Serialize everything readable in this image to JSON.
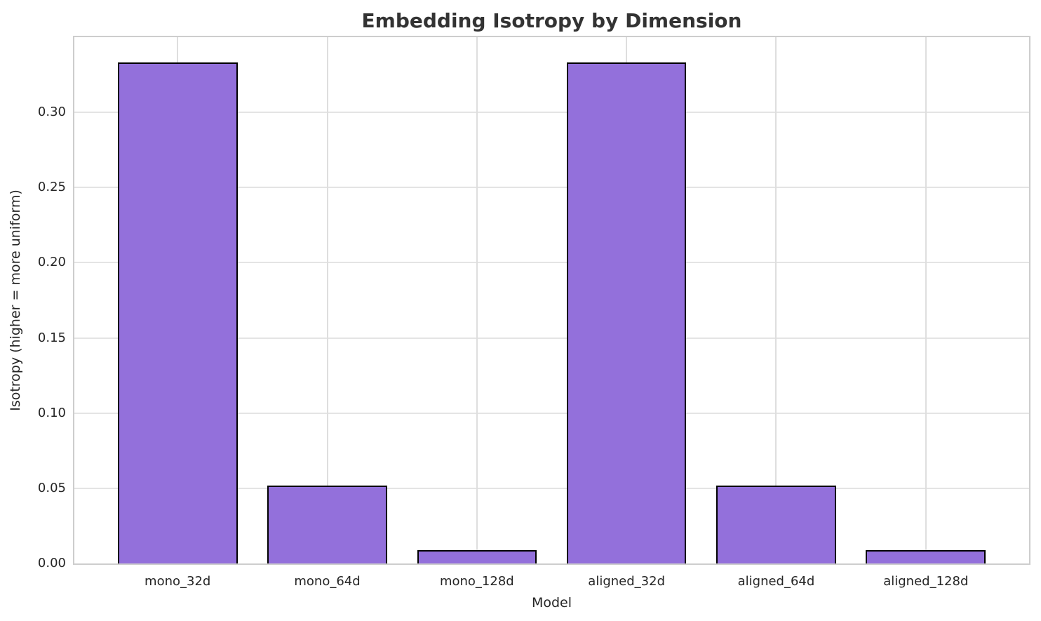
{
  "chart_data": {
    "type": "bar",
    "title": "Embedding Isotropy by Dimension",
    "xlabel": "Model",
    "ylabel": "Isotropy (higher = more uniform)",
    "categories": [
      "mono_32d",
      "mono_64d",
      "mono_128d",
      "aligned_32d",
      "aligned_64d",
      "aligned_128d"
    ],
    "values": [
      0.333,
      0.052,
      0.009,
      0.333,
      0.052,
      0.009
    ],
    "ylim": [
      0,
      0.35
    ],
    "xlim": [
      -0.69,
      5.69
    ],
    "bar_width": 0.8,
    "yticks": [
      {
        "value": 0.0,
        "label": "0.00"
      },
      {
        "value": 0.05,
        "label": "0.05"
      },
      {
        "value": 0.1,
        "label": "0.10"
      },
      {
        "value": 0.15,
        "label": "0.15"
      },
      {
        "value": 0.2,
        "label": "0.20"
      },
      {
        "value": 0.25,
        "label": "0.25"
      },
      {
        "value": 0.3,
        "label": "0.30"
      }
    ],
    "grid": true,
    "legend": "none",
    "colors": {
      "bar_fill": "#9370DB",
      "bar_edge": "#000000",
      "grid_h": "#e4e4e4",
      "grid_v": "#dedede",
      "spine": "#cdcdcd",
      "text": "#262626",
      "title": "#333333",
      "background": "#ffffff"
    }
  }
}
